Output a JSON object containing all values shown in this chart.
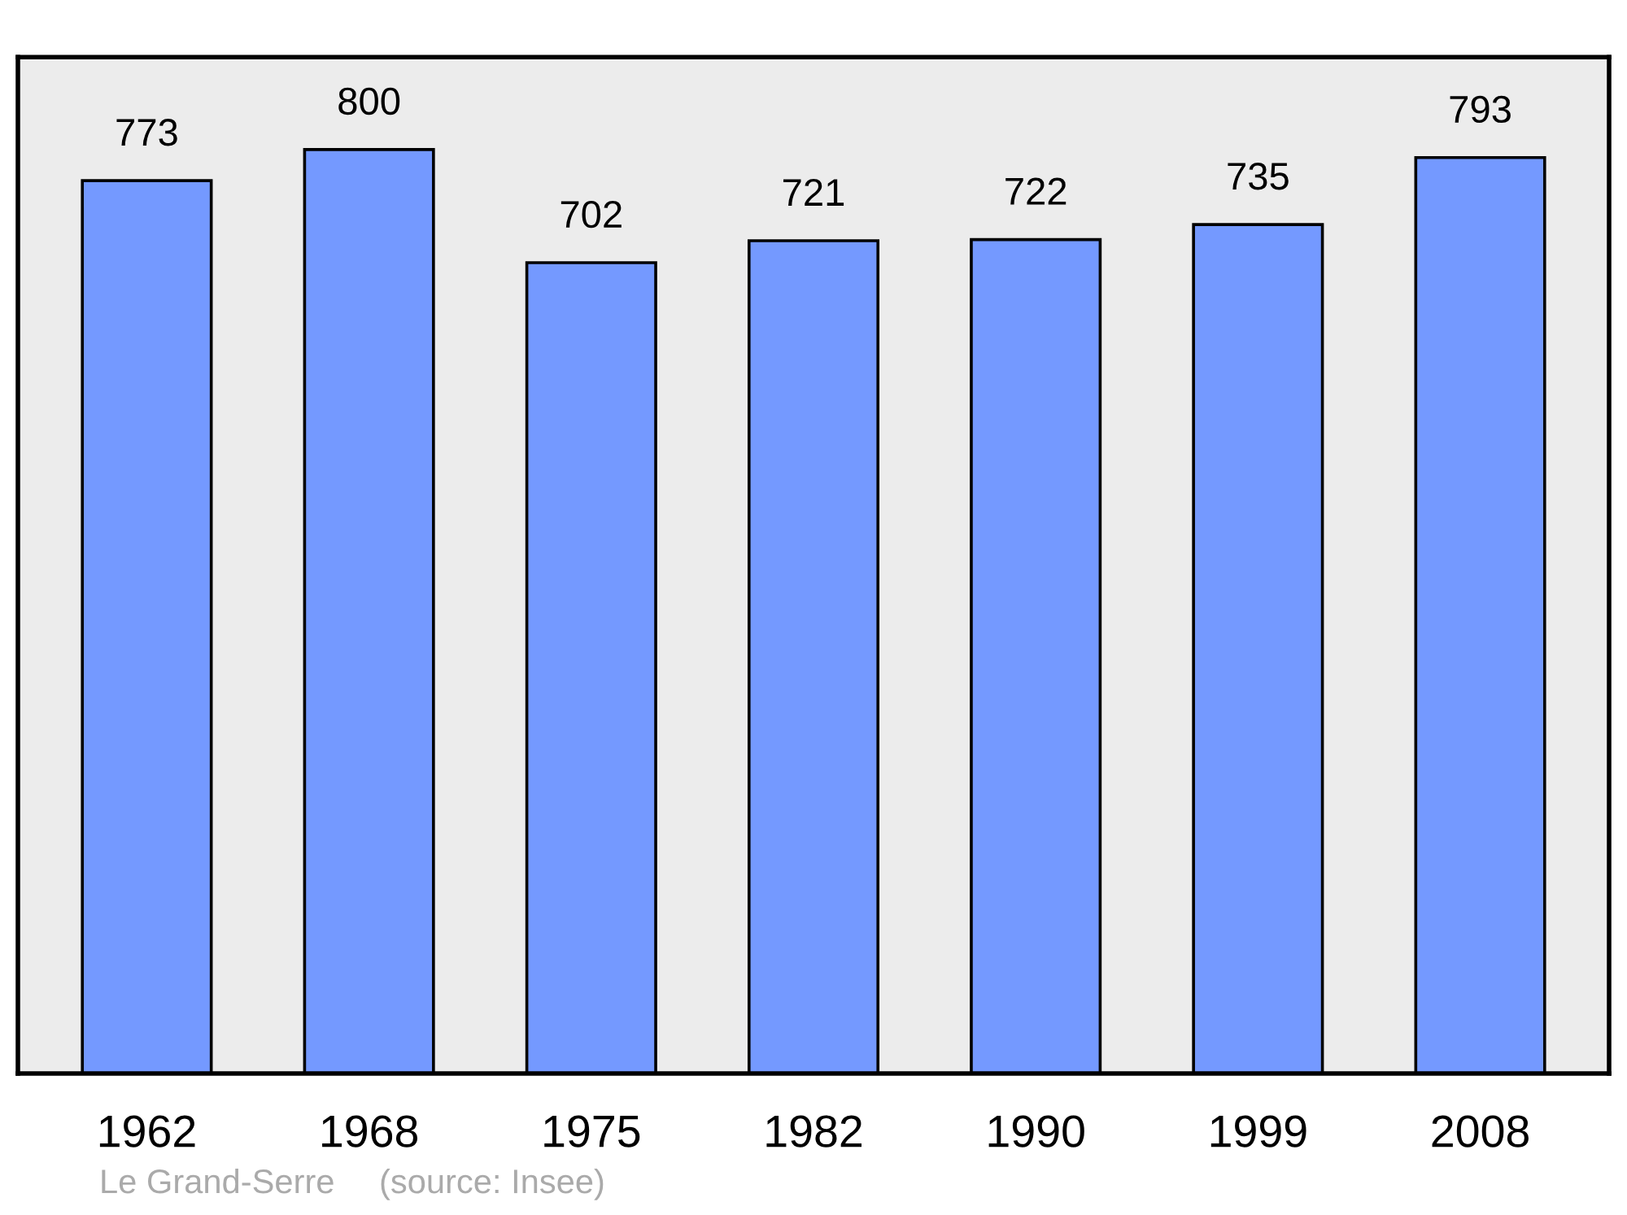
{
  "chart_data": {
    "type": "bar",
    "categories": [
      "1962",
      "1968",
      "1975",
      "1982",
      "1990",
      "1999",
      "2008"
    ],
    "values": [
      773,
      800,
      702,
      721,
      722,
      735,
      793
    ],
    "color": "#7499ff",
    "ylim": [
      0,
      880
    ],
    "data_labels": true,
    "tick_labels": "x",
    "grid": false,
    "legend": false,
    "annotations": [
      "Le Grand-Serre",
      "(source: Insee)"
    ]
  }
}
